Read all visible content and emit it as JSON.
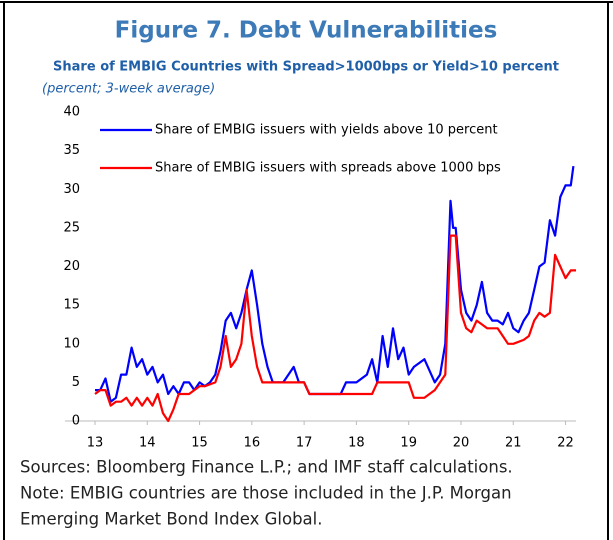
{
  "chart_data": {
    "type": "line",
    "title": "Figure 7. Debt Vulnerabilities",
    "subtitle": "Share of EMBIG Countries with Spread>1000bps or Yield>10 percent",
    "units_note": "(percent; 3-week average)",
    "xlim": [
      13,
      22.2
    ],
    "xticks": [
      13,
      14,
      15,
      16,
      17,
      18,
      19,
      20,
      21,
      22
    ],
    "ylim": [
      0,
      40
    ],
    "yticks": [
      0,
      5,
      10,
      15,
      20,
      25,
      30,
      35,
      40
    ],
    "grid": false,
    "legend": "top-left",
    "series": [
      {
        "name": "Share of EMBIG issuers with yields above 10 percent",
        "color": "#0000ff",
        "x": [
          13.0,
          13.1,
          13.2,
          13.3,
          13.4,
          13.5,
          13.6,
          13.7,
          13.8,
          13.9,
          14.0,
          14.1,
          14.2,
          14.3,
          14.4,
          14.5,
          14.6,
          14.7,
          14.8,
          14.9,
          15.0,
          15.1,
          15.2,
          15.3,
          15.4,
          15.5,
          15.6,
          15.7,
          15.8,
          15.9,
          16.0,
          16.1,
          16.2,
          16.3,
          16.4,
          16.5,
          16.6,
          16.8,
          16.9,
          17.0,
          17.1,
          17.5,
          17.7,
          17.8,
          18.0,
          18.2,
          18.3,
          18.4,
          18.5,
          18.6,
          18.7,
          18.8,
          18.9,
          19.0,
          19.1,
          19.3,
          19.5,
          19.6,
          19.7,
          19.8,
          19.85,
          19.9,
          20.0,
          20.1,
          20.2,
          20.3,
          20.4,
          20.5,
          20.6,
          20.7,
          20.8,
          20.9,
          21.0,
          21.1,
          21.2,
          21.3,
          21.4,
          21.5,
          21.6,
          21.7,
          21.8,
          21.9,
          22.0,
          22.1,
          22.15
        ],
        "values": [
          4,
          4,
          5.5,
          2.5,
          3,
          6,
          6,
          9.5,
          7,
          8,
          6,
          7,
          5,
          6,
          3.5,
          4.5,
          3.5,
          5,
          5,
          4,
          5,
          4.5,
          5,
          6,
          9,
          13,
          14,
          12,
          14,
          17,
          19.5,
          15,
          10,
          7,
          5,
          5,
          5,
          7,
          5,
          5,
          3.5,
          3.5,
          3.5,
          5,
          5,
          6,
          8,
          5,
          11,
          7,
          12,
          8,
          9.5,
          6,
          7,
          8,
          5,
          6,
          10,
          28.5,
          25,
          25,
          17,
          14,
          13,
          15,
          18,
          14,
          13,
          13,
          12.5,
          14,
          12,
          11.5,
          13,
          14,
          17,
          20,
          20.5,
          26,
          24,
          29,
          30.5,
          30.5,
          33
        ]
      },
      {
        "name": "Share of EMBIG issuers with spreads above 1000 bps",
        "color": "#ff0000",
        "x": [
          13.0,
          13.1,
          13.2,
          13.3,
          13.4,
          13.5,
          13.6,
          13.7,
          13.8,
          13.9,
          14.0,
          14.1,
          14.2,
          14.3,
          14.4,
          14.5,
          14.6,
          14.8,
          14.9,
          15.0,
          15.1,
          15.3,
          15.4,
          15.5,
          15.6,
          15.7,
          15.8,
          15.9,
          16.0,
          16.1,
          16.2,
          16.4,
          16.6,
          16.8,
          17.0,
          17.1,
          17.5,
          17.8,
          18.0,
          18.2,
          18.3,
          18.4,
          18.6,
          18.8,
          19.0,
          19.1,
          19.3,
          19.5,
          19.7,
          19.8,
          19.9,
          20.0,
          20.1,
          20.2,
          20.3,
          20.4,
          20.5,
          20.6,
          20.7,
          20.8,
          20.9,
          21.0,
          21.2,
          21.3,
          21.4,
          21.5,
          21.6,
          21.7,
          21.8,
          21.9,
          22.0,
          22.1,
          22.2
        ],
        "values": [
          3.5,
          4,
          4,
          2,
          2.5,
          2.5,
          3,
          2,
          3,
          2,
          3,
          2,
          3.5,
          1,
          0,
          1.5,
          3.5,
          3.5,
          4,
          4.5,
          4.5,
          5,
          7,
          11,
          7,
          8,
          10,
          17,
          11,
          7,
          5,
          5,
          5,
          5,
          5,
          3.5,
          3.5,
          3.5,
          3.5,
          3.5,
          3.5,
          5,
          5,
          5,
          5,
          3,
          3,
          4,
          6,
          24,
          24,
          14,
          12,
          11.5,
          13,
          12.5,
          12,
          12,
          12,
          11,
          10,
          10,
          10.5,
          11,
          13,
          14,
          13.5,
          14,
          21.5,
          20,
          18.5,
          19.5,
          19.5
        ]
      }
    ],
    "notes": [
      "Sources: Bloomberg Finance L.P.; and IMF staff calculations.",
      "Note: EMBIG countries are those included in the J.P. Morgan",
      "Emerging Market Bond Index Global."
    ]
  }
}
